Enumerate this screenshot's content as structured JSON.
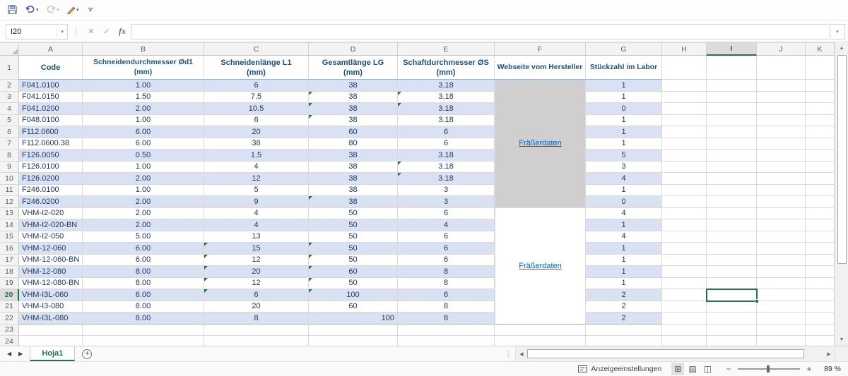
{
  "colors": {
    "accent": "#217346",
    "band": "#D9E1F2",
    "merge-gray": "#D0CECE",
    "link": "#0563C1",
    "header-text": "#1F4E79",
    "data-text": "#1F3864",
    "flag": "#107C41",
    "table-border": "#95B3D7"
  },
  "icons": {
    "dropdown": "▾",
    "cancel": "✕",
    "enter": "✓",
    "dots": "⋮",
    "tab_left": "◀",
    "tab_right": "▶",
    "scroll_up": "▲",
    "scroll_down": "▼",
    "scroll_left": "◀",
    "scroll_right": "▶",
    "new_sheet": "+",
    "zoom_out": "−",
    "zoom_in": "+"
  },
  "formula": {
    "name_box": "I20",
    "value": "",
    "fx_label": "fx"
  },
  "selection": {
    "cell": "I20",
    "column": "I",
    "row": 20
  },
  "sheet_tabs": {
    "active": "Hoja1"
  },
  "status": {
    "display_settings": "Anzeigeeinstellungen",
    "zoom": "89 %"
  },
  "grid": {
    "columns": [
      "A",
      "B",
      "C",
      "D",
      "E",
      "F",
      "G",
      "H",
      "I",
      "J",
      "K"
    ],
    "visible_rows": 24,
    "headers": [
      {
        "col": "A",
        "line1": "Code",
        "line2": ""
      },
      {
        "col": "B",
        "line1": "Schneidendurchmesser  Ød1",
        "line2": "(mm)"
      },
      {
        "col": "C",
        "line1": "Schneidenlänge L1",
        "line2": "(mm)"
      },
      {
        "col": "D",
        "line1": "Gesamtlänge LG",
        "line2": "(mm)"
      },
      {
        "col": "E",
        "line1": "Schaftdurchmesser ØS",
        "line2": "(mm)"
      },
      {
        "col": "F",
        "line1": "Webseite vom Hersteller",
        "line2": ""
      },
      {
        "col": "G",
        "line1": "Stückzahl im Labor",
        "line2": ""
      }
    ],
    "rows": [
      {
        "n": 2,
        "code": "F041.0100",
        "d1": "1.00",
        "l1": "6",
        "lg": "38",
        "s": "3.18",
        "qty": "1",
        "flags": []
      },
      {
        "n": 3,
        "code": "F041.0150",
        "d1": "1.50",
        "l1": "7.5",
        "lg": "38",
        "s": "3.18",
        "qty": "1",
        "flags": [
          "D",
          "E"
        ]
      },
      {
        "n": 4,
        "code": "F041.0200",
        "d1": "2.00",
        "l1": "10.5",
        "lg": "38",
        "s": "3.18",
        "qty": "0",
        "flags": [
          "D",
          "E"
        ]
      },
      {
        "n": 5,
        "code": "F048.0100",
        "d1": "1.00",
        "l1": "6",
        "lg": "38",
        "s": "3.18",
        "qty": "1",
        "flags": [
          "D"
        ]
      },
      {
        "n": 6,
        "code": "F112.0600",
        "d1": "6.00",
        "l1": "20",
        "lg": "60",
        "s": "6",
        "qty": "1",
        "flags": []
      },
      {
        "n": 7,
        "code": "F112.0600.38",
        "d1": "6.00",
        "l1": "38",
        "lg": "80",
        "s": "6",
        "qty": "1",
        "flags": []
      },
      {
        "n": 8,
        "code": "F126.0050",
        "d1": "0.50",
        "l1": "1.5",
        "lg": "38",
        "s": "3.18",
        "qty": "5",
        "flags": []
      },
      {
        "n": 9,
        "code": "F126.0100",
        "d1": "1.00",
        "l1": "4",
        "lg": "38",
        "s": "3.18",
        "qty": "3",
        "flags": [
          "E"
        ]
      },
      {
        "n": 10,
        "code": "F126.0200",
        "d1": "2.00",
        "l1": "12",
        "lg": "38",
        "s": "3.18",
        "qty": "4",
        "flags": [
          "E"
        ]
      },
      {
        "n": 11,
        "code": "F246.0100",
        "d1": "1.00",
        "l1": "5",
        "lg": "38",
        "s": "3",
        "qty": "1",
        "flags": []
      },
      {
        "n": 12,
        "code": "F246.0200",
        "d1": "2.00",
        "l1": "9",
        "lg": "38",
        "s": "3",
        "qty": "0",
        "flags": [
          "D"
        ]
      },
      {
        "n": 13,
        "code": "VHM-I2-020",
        "d1": "2.00",
        "l1": "4",
        "lg": "50",
        "s": "6",
        "qty": "4",
        "flags": []
      },
      {
        "n": 14,
        "code": "VHM-I2-020-BN",
        "d1": "2.00",
        "l1": "4",
        "lg": "50",
        "s": "4",
        "qty": "1",
        "flags": []
      },
      {
        "n": 15,
        "code": "VHM-I2-050",
        "d1": "5.00",
        "l1": "13",
        "lg": "50",
        "s": "6",
        "qty": "4",
        "flags": []
      },
      {
        "n": 16,
        "code": "VHM-12-060",
        "d1": "6.00",
        "l1": "15",
        "lg": "50",
        "s": "6",
        "qty": "1",
        "flags": [
          "C",
          "D"
        ]
      },
      {
        "n": 17,
        "code": "VHM-12-060-BN",
        "d1": "6.00",
        "l1": "12",
        "lg": "50",
        "s": "6",
        "qty": "1",
        "flags": [
          "C",
          "D"
        ]
      },
      {
        "n": 18,
        "code": "VHM-12-080",
        "d1": "8.00",
        "l1": "20",
        "lg": "60",
        "s": "8",
        "qty": "1",
        "flags": [
          "C",
          "D"
        ]
      },
      {
        "n": 19,
        "code": "VHM-12-080-BN",
        "d1": "8.00",
        "l1": "12",
        "lg": "50",
        "s": "8",
        "qty": "1",
        "flags": [
          "C",
          "D"
        ]
      },
      {
        "n": 20,
        "code": "VHM-I3L-060",
        "d1": "6.00",
        "l1": "6",
        "lg": "100",
        "s": "6",
        "qty": "2",
        "flags": [
          "C",
          "D"
        ]
      },
      {
        "n": 21,
        "code": "VHM-I3-080",
        "d1": "8.00",
        "l1": "20",
        "lg": "60",
        "s": "8",
        "qty": "2",
        "flags": []
      },
      {
        "n": 22,
        "code": "VHM-I3L-080",
        "d1": "8.00",
        "l1": "8",
        "lg": "100",
        "s": "8",
        "qty": "2",
        "flags": [],
        "lg_align": "right"
      }
    ],
    "hersteller_links": [
      {
        "label": "Fräßerdaten",
        "rows": "2-12",
        "style": "gray"
      },
      {
        "label": "Fräßerdaten",
        "rows": "13-22",
        "style": "white"
      }
    ]
  }
}
